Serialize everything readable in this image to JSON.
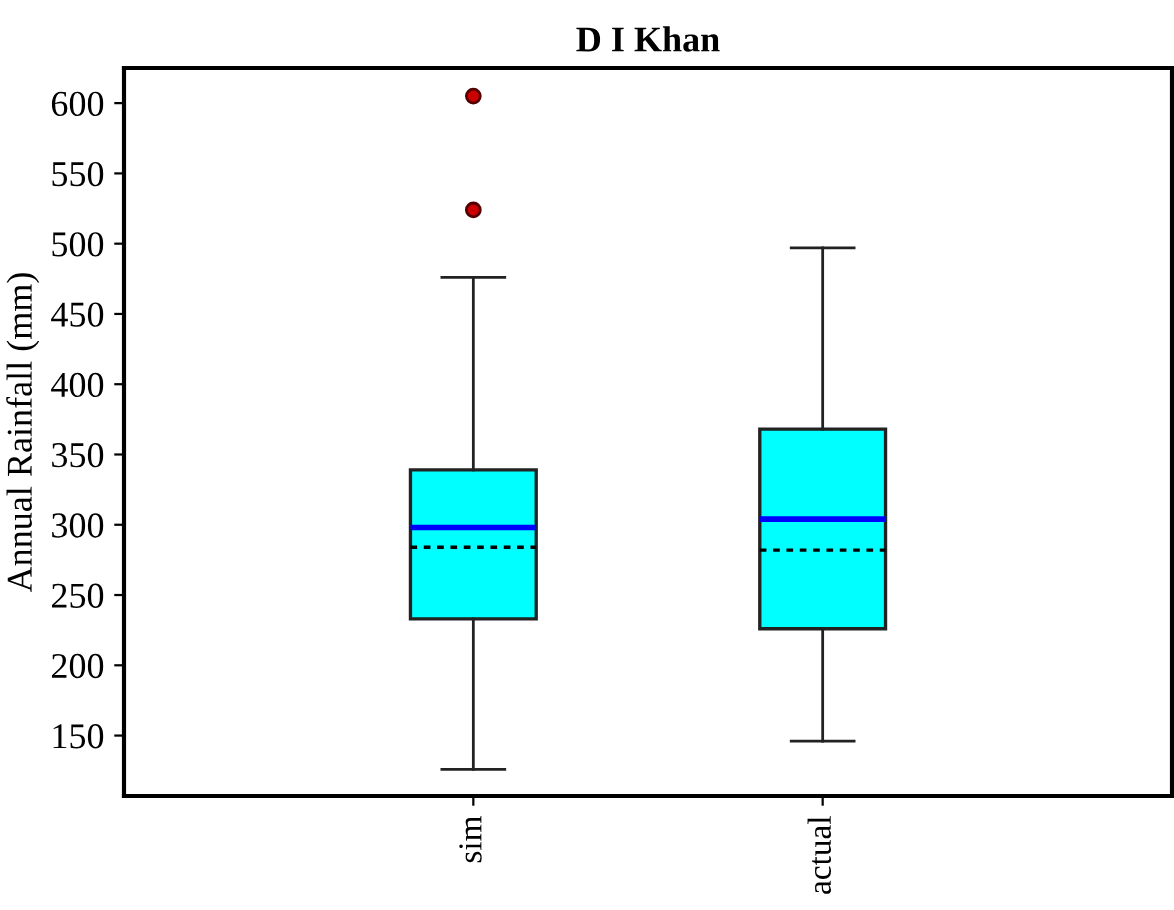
{
  "chart_data": {
    "type": "box",
    "title": "D I Khan",
    "ylabel": "Annual Rainfall (mm)",
    "categories": [
      "sim",
      "actual"
    ],
    "boxes": [
      {
        "low": 126,
        "q1": 233,
        "median": 298,
        "q3": 339,
        "high": 476,
        "mean": 284,
        "outliers": [
          524,
          605
        ]
      },
      {
        "low": 146,
        "q1": 226,
        "median": 304,
        "q3": 368,
        "high": 497,
        "mean": 282
      }
    ],
    "color": "#00ffff",
    "ylim": [
      107,
      625
    ],
    "yticks": [
      150,
      200,
      250,
      300,
      350,
      400,
      450,
      500,
      550,
      600
    ],
    "grid": false
  }
}
